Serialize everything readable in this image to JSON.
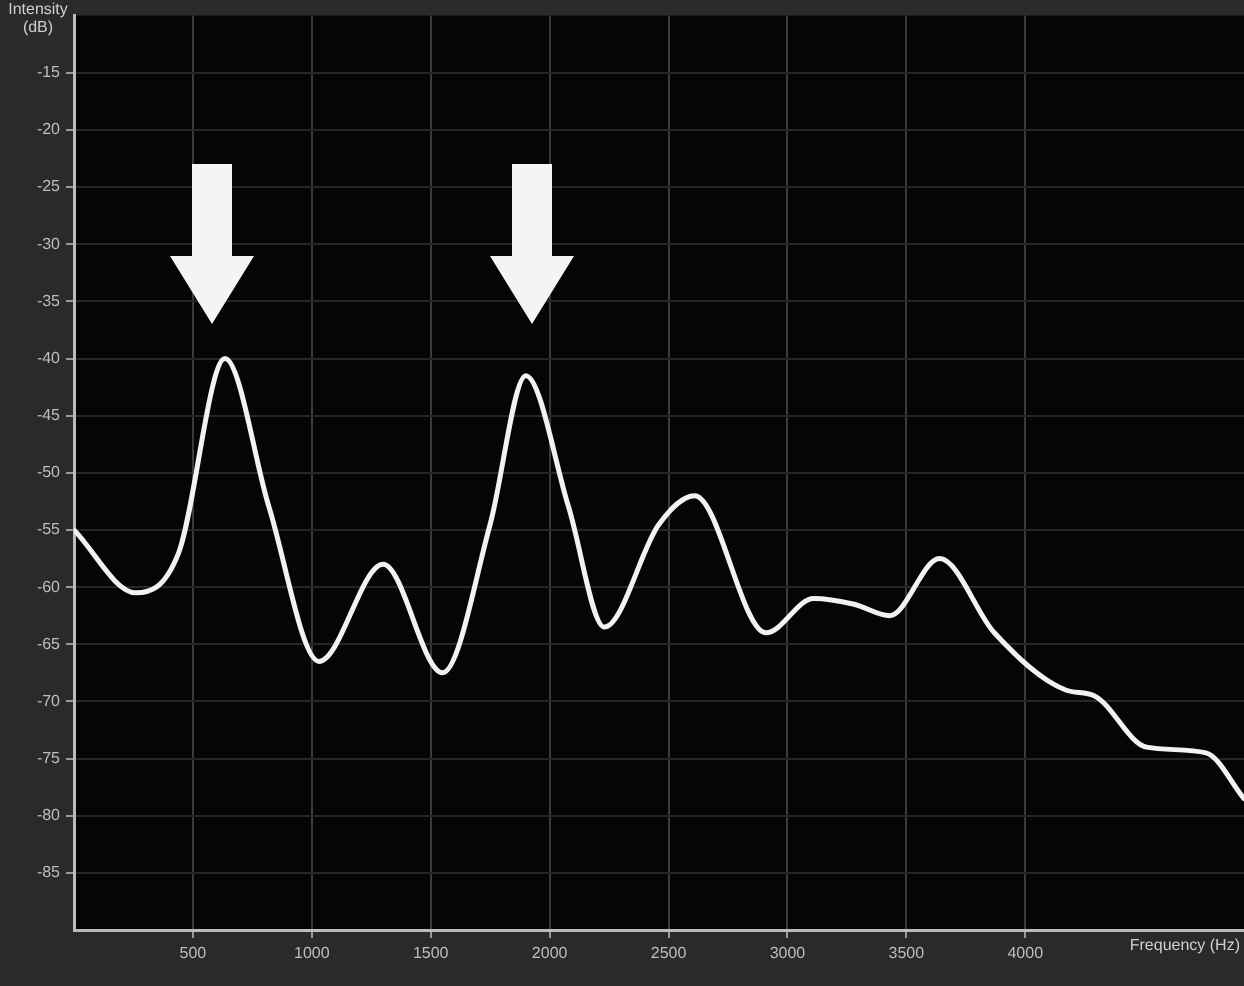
{
  "chart_data": {
    "type": "line",
    "xlabel": "Frequency (Hz)",
    "ylabel": "Intensity (dB)",
    "x": [
      0,
      260,
      440,
      635,
      820,
      1030,
      1300,
      1550,
      1750,
      1900,
      2080,
      2230,
      2460,
      2610,
      2910,
      3110,
      3280,
      3430,
      3640,
      3870,
      4170,
      4290,
      4510,
      4760,
      4920
    ],
    "series": [
      {
        "color": "#f2f2f2",
        "values": [
          -55,
          -60.5,
          -57,
          -40,
          -53,
          -66.5,
          -58,
          -67.5,
          -54.5,
          -41.5,
          -53,
          -63.5,
          -54.5,
          -52,
          -64,
          -61,
          -61.5,
          -62.5,
          -57.5,
          -64,
          -69,
          -69.5,
          -74,
          -74.5,
          -78.5
        ]
      }
    ],
    "xlim": [
      0,
      4920
    ],
    "ylim": [
      -90,
      -10
    ],
    "xticks": [
      500,
      1000,
      1500,
      2000,
      2500,
      3000,
      3500,
      4000
    ],
    "yticks": [
      -15,
      -20,
      -25,
      -30,
      -35,
      -40,
      -45,
      -50,
      -55,
      -60,
      -65,
      -70,
      -75,
      -80,
      -85
    ],
    "grid": true,
    "legend": false,
    "marker": "none",
    "line_style": "solid"
  }
}
